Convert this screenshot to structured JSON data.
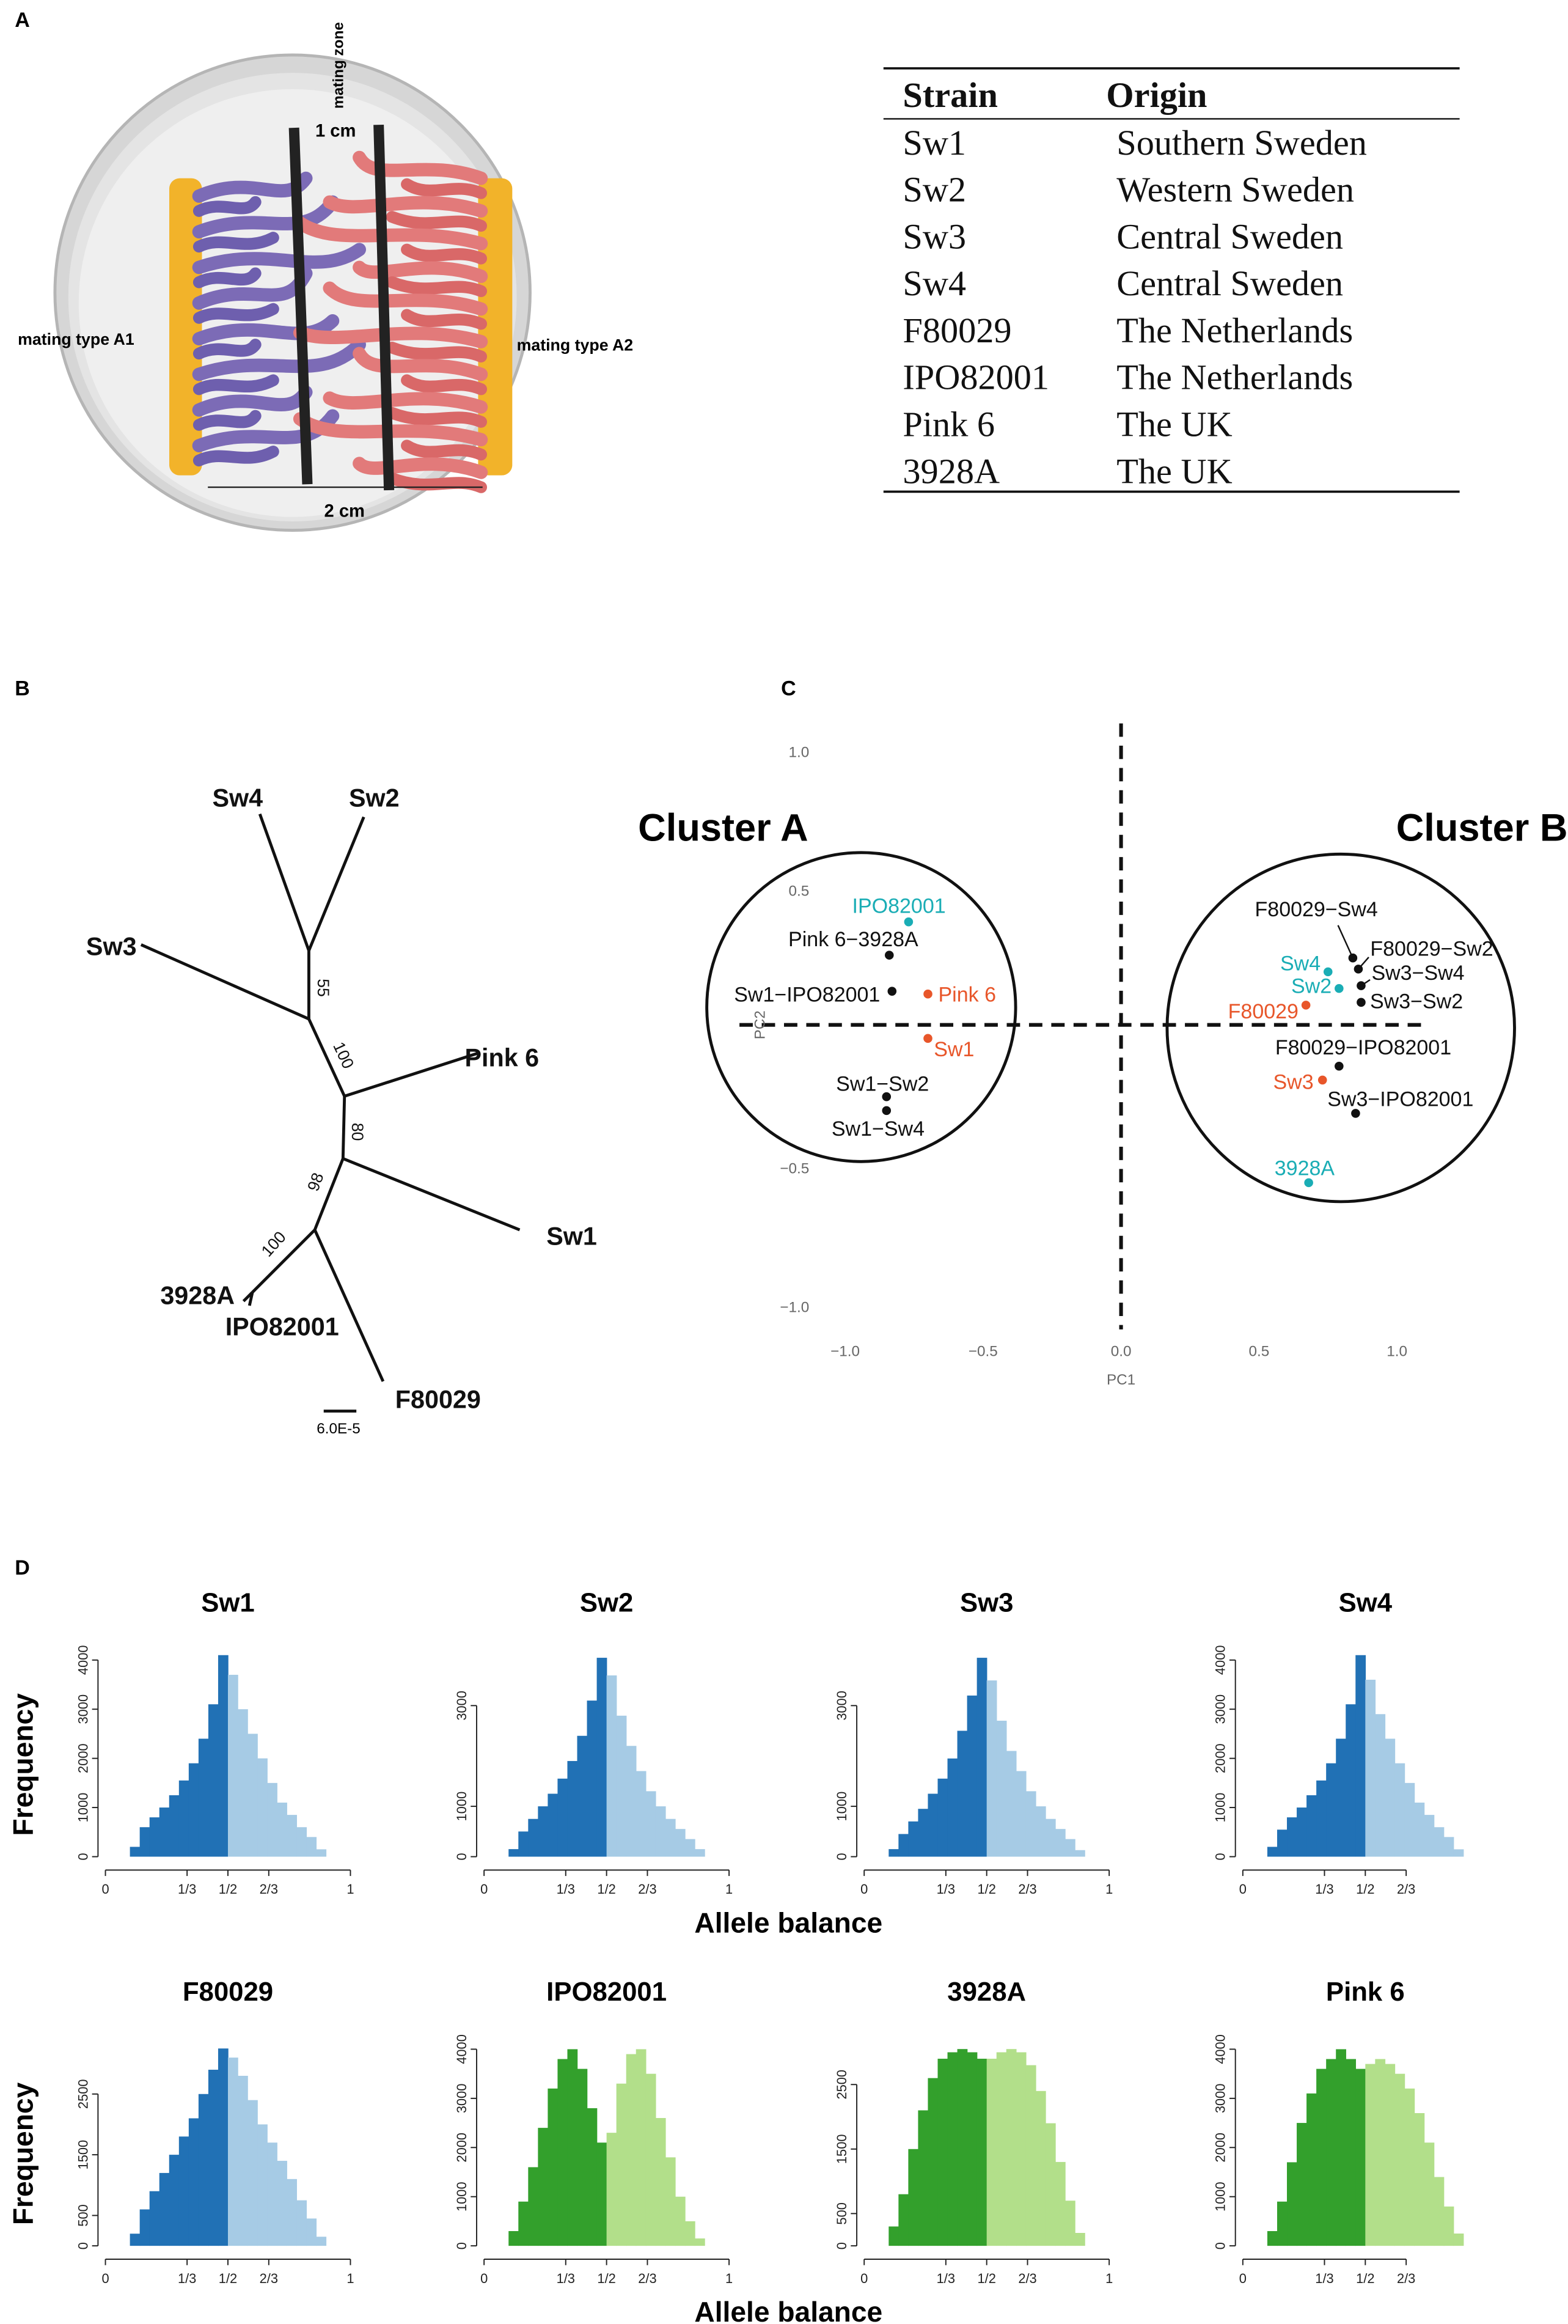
{
  "panel_labels": [
    "A",
    "B",
    "C",
    "D"
  ],
  "diagram": {
    "zone_label": "mating zone",
    "zone_width": "1 cm",
    "left_label": "mating type A1",
    "right_label": "mating type A2",
    "dish_width": "2 cm"
  },
  "table": {
    "header": [
      "Strain",
      "Origin"
    ],
    "rows": [
      [
        "Sw1",
        "Southern Sweden"
      ],
      [
        "Sw2",
        "Western Sweden"
      ],
      [
        "Sw3",
        "Central Sweden"
      ],
      [
        "Sw4",
        "Central Sweden"
      ],
      [
        "F80029",
        "The Netherlands"
      ],
      [
        "IPO82001",
        "The Netherlands"
      ],
      [
        "Pink 6",
        "The UK"
      ],
      [
        "3928A",
        "The UK"
      ]
    ]
  },
  "tree": {
    "tips": [
      "Sw4",
      "Sw2",
      "Sw3",
      "Pink 6",
      "Sw1",
      "3928A",
      "IPO82001",
      "F80029"
    ],
    "support": [
      55,
      100,
      80,
      98,
      100
    ],
    "scale": "6.0E-5"
  },
  "chart_data": [
    {
      "type": "scatter",
      "cluster_labels": [
        "Cluster A",
        "Cluster B"
      ],
      "xlabel": "PC1",
      "ylabel": "PC2",
      "labels": [
        "IPO82001",
        "Pink 6−3928A",
        "Sw1−IPO82001",
        "Pink 6",
        "Sw1",
        "Sw1−Sw2",
        "Sw1−Sw4",
        "F80029−Sw4",
        "F80029−Sw2",
        "Sw4",
        "Sw3−Sw4",
        "Sw2",
        "Sw3−Sw2",
        "F80029",
        "F80029−IPO82001",
        "Sw3",
        "Sw3−IPO82001",
        "3928A"
      ],
      "x": [
        -0.77,
        -0.84,
        -0.83,
        -0.7,
        -0.7,
        -0.85,
        -0.85,
        0.84,
        0.86,
        0.75,
        0.87,
        0.79,
        0.87,
        0.67,
        0.79,
        0.73,
        0.85,
        0.68
      ],
      "values": [
        0.39,
        0.27,
        0.14,
        0.13,
        -0.03,
        -0.24,
        -0.29,
        0.26,
        0.22,
        0.21,
        0.16,
        0.15,
        0.1,
        0.09,
        -0.13,
        -0.18,
        -0.3,
        -0.55
      ],
      "colors": [
        "#1aadb5",
        "#111111",
        "#111111",
        "#e8562a",
        "#e8562a",
        "#111111",
        "#111111",
        "#111111",
        "#111111",
        "#1aadb5",
        "#111111",
        "#1aadb5",
        "#111111",
        "#e8562a",
        "#111111",
        "#e8562a",
        "#111111",
        "#1aadb5"
      ],
      "xlim": [
        -1.2,
        1.2
      ],
      "ylim": [
        -1.1,
        1.1
      ],
      "xticks": [
        {
          "value": -1,
          "label": "−1.0"
        },
        {
          "value": -0.5,
          "label": "−0.5"
        },
        {
          "value": 0,
          "label": "0.0"
        },
        0.5,
        {
          "value": 1,
          "label": "1.0"
        }
      ],
      "yticks": [
        {
          "value": 1,
          "label": "1.0"
        },
        0.5,
        {
          "value": -0.5,
          "label": "−0.5"
        },
        {
          "value": -1,
          "label": "−1.0"
        }
      ]
    },
    {
      "type": "histogram",
      "title": "Sw1",
      "ylabel": "Frequency",
      "bins": [
        0.1,
        0.14,
        0.18,
        0.22,
        0.26,
        0.3,
        0.34,
        0.38,
        0.42,
        0.46,
        0.5,
        0.54,
        0.58,
        0.62,
        0.66,
        0.7,
        0.74,
        0.78,
        0.82,
        0.86,
        0.9
      ],
      "values": [
        200,
        600,
        800,
        1000,
        1250,
        1550,
        1900,
        2400,
        3100,
        4100,
        3700,
        3000,
        2500,
        2000,
        1500,
        1100,
        850,
        600,
        400,
        150
      ],
      "colors": [
        "#2171b5",
        "#a6cbe5"
      ],
      "split": 0.5,
      "xlim": [
        0,
        1
      ],
      "xticks": [
        0,
        {
          "value": 0.3333,
          "label": "1/3"
        },
        {
          "value": 0.5,
          "label": "1/2"
        },
        {
          "value": 0.6667,
          "label": "2/3"
        },
        1
      ],
      "ylim": [
        0,
        4200
      ],
      "yticks": [
        0,
        1000,
        2000,
        3000,
        4000
      ]
    },
    {
      "type": "histogram",
      "title": "Sw2",
      "xlabel": "Allele balance",
      "bins": [
        0.1,
        0.14,
        0.18,
        0.22,
        0.26,
        0.3,
        0.34,
        0.38,
        0.42,
        0.46,
        0.5,
        0.54,
        0.58,
        0.62,
        0.66,
        0.7,
        0.74,
        0.78,
        0.82,
        0.86,
        0.9
      ],
      "values": [
        150,
        500,
        750,
        1000,
        1250,
        1550,
        1900,
        2400,
        3100,
        3950,
        3600,
        2800,
        2200,
        1700,
        1300,
        1000,
        750,
        550,
        350,
        150
      ],
      "colors": [
        "#2171b5",
        "#a6cbe5"
      ],
      "split": 0.5,
      "xlim": [
        0,
        1
      ],
      "xticks": [
        0,
        {
          "value": 0.3333,
          "label": "1/3"
        },
        {
          "value": 0.5,
          "label": "1/2"
        },
        {
          "value": 0.6667,
          "label": "2/3"
        },
        1
      ],
      "ylim": [
        0,
        4100
      ],
      "yticks": [
        0,
        1000,
        3000
      ]
    },
    {
      "type": "histogram",
      "title": "Sw3",
      "bins": [
        0.1,
        0.14,
        0.18,
        0.22,
        0.26,
        0.3,
        0.34,
        0.38,
        0.42,
        0.46,
        0.5,
        0.54,
        0.58,
        0.62,
        0.66,
        0.7,
        0.74,
        0.78,
        0.82,
        0.86,
        0.9
      ],
      "values": [
        150,
        450,
        700,
        950,
        1250,
        1550,
        1950,
        2500,
        3200,
        3950,
        3500,
        2700,
        2100,
        1700,
        1300,
        1000,
        750,
        550,
        350,
        130
      ],
      "colors": [
        "#2171b5",
        "#a6cbe5"
      ],
      "split": 0.5,
      "xlim": [
        0,
        1
      ],
      "xticks": [
        0,
        {
          "value": 0.3333,
          "label": "1/3"
        },
        {
          "value": 0.5,
          "label": "1/2"
        },
        {
          "value": 0.6667,
          "label": "2/3"
        },
        1
      ],
      "ylim": [
        0,
        4100
      ],
      "yticks": [
        0,
        1000,
        3000
      ]
    },
    {
      "type": "histogram",
      "title": "Sw4",
      "bins": [
        0.1,
        0.14,
        0.18,
        0.22,
        0.26,
        0.3,
        0.34,
        0.38,
        0.42,
        0.46,
        0.5,
        0.54,
        0.58,
        0.62,
        0.66,
        0.7,
        0.74,
        0.78,
        0.82,
        0.86,
        0.9
      ],
      "values": [
        200,
        550,
        800,
        1000,
        1250,
        1550,
        1900,
        2400,
        3100,
        4100,
        3600,
        2900,
        2400,
        1900,
        1500,
        1100,
        850,
        600,
        400,
        150
      ],
      "colors": [
        "#2171b5",
        "#a6cbe5"
      ],
      "split": 0.5,
      "xlim": [
        0,
        1
      ],
      "xticks": [
        0,
        {
          "value": 0.3333,
          "label": "1/3"
        },
        {
          "value": 0.5,
          "label": "1/2"
        },
        {
          "value": 0.6667,
          "label": "2/3"
        }
      ],
      "ylim": [
        0,
        4200
      ],
      "yticks": [
        0,
        1000,
        2000,
        3000,
        4000
      ]
    },
    {
      "type": "histogram",
      "title": "F80029",
      "ylabel": "Frequency",
      "bins": [
        0.1,
        0.14,
        0.18,
        0.22,
        0.26,
        0.3,
        0.34,
        0.38,
        0.42,
        0.46,
        0.5,
        0.54,
        0.58,
        0.62,
        0.66,
        0.7,
        0.74,
        0.78,
        0.82,
        0.86,
        0.9
      ],
      "values": [
        200,
        600,
        900,
        1200,
        1500,
        1800,
        2100,
        2500,
        2900,
        3250,
        3100,
        2800,
        2400,
        2000,
        1700,
        1400,
        1100,
        750,
        450,
        150
      ],
      "colors": [
        "#2171b5",
        "#a6cbe5"
      ],
      "split": 0.5,
      "xlim": [
        0,
        1
      ],
      "xticks": [
        0,
        {
          "value": 0.3333,
          "label": "1/3"
        },
        {
          "value": 0.5,
          "label": "1/2"
        },
        {
          "value": 0.6667,
          "label": "2/3"
        },
        1
      ],
      "ylim": [
        0,
        3400
      ],
      "yticks": [
        0,
        500,
        1500,
        2500
      ]
    },
    {
      "type": "histogram",
      "title": "IPO82001",
      "xlabel": "Allele balance",
      "bins": [
        0.1,
        0.14,
        0.18,
        0.22,
        0.26,
        0.3,
        0.34,
        0.38,
        0.42,
        0.46,
        0.5,
        0.54,
        0.58,
        0.62,
        0.66,
        0.7,
        0.74,
        0.78,
        0.82,
        0.86,
        0.9
      ],
      "values": [
        300,
        900,
        1600,
        2400,
        3200,
        3800,
        4000,
        3600,
        2800,
        2100,
        2300,
        3300,
        3900,
        4000,
        3500,
        2600,
        1800,
        1000,
        500,
        150
      ],
      "colors": [
        "#33a02c",
        "#b2df8a"
      ],
      "split": 0.5,
      "xlim": [
        0,
        1
      ],
      "xticks": [
        0,
        {
          "value": 0.3333,
          "label": "1/3"
        },
        {
          "value": 0.5,
          "label": "1/2"
        },
        {
          "value": 0.6667,
          "label": "2/3"
        },
        1
      ],
      "ylim": [
        0,
        4200
      ],
      "yticks": [
        0,
        1000,
        2000,
        3000,
        4000
      ]
    },
    {
      "type": "histogram",
      "title": "3928A",
      "bins": [
        0.1,
        0.14,
        0.18,
        0.22,
        0.26,
        0.3,
        0.34,
        0.38,
        0.42,
        0.46,
        0.5,
        0.54,
        0.58,
        0.62,
        0.66,
        0.7,
        0.74,
        0.78,
        0.82,
        0.86,
        0.9
      ],
      "values": [
        300,
        800,
        1500,
        2100,
        2600,
        2900,
        3000,
        3050,
        3000,
        2900,
        2900,
        3000,
        3050,
        3000,
        2800,
        2400,
        1900,
        1300,
        700,
        200
      ],
      "colors": [
        "#33a02c",
        "#b2df8a"
      ],
      "split": 0.5,
      "xlim": [
        0,
        1
      ],
      "xticks": [
        0,
        {
          "value": 0.3333,
          "label": "1/3"
        },
        {
          "value": 0.5,
          "label": "1/2"
        },
        {
          "value": 0.6667,
          "label": "2/3"
        },
        1
      ],
      "ylim": [
        0,
        3200
      ],
      "yticks": [
        0,
        500,
        1500,
        2500
      ]
    },
    {
      "type": "histogram",
      "title": "Pink 6",
      "bins": [
        0.1,
        0.14,
        0.18,
        0.22,
        0.26,
        0.3,
        0.34,
        0.38,
        0.42,
        0.46,
        0.5,
        0.54,
        0.58,
        0.62,
        0.66,
        0.7,
        0.74,
        0.78,
        0.82,
        0.86,
        0.9
      ],
      "values": [
        300,
        900,
        1700,
        2500,
        3100,
        3600,
        3800,
        4000,
        3800,
        3600,
        3700,
        3800,
        3700,
        3500,
        3200,
        2700,
        2100,
        1400,
        800,
        250
      ],
      "colors": [
        "#33a02c",
        "#b2df8a"
      ],
      "split": 0.5,
      "xlim": [
        0,
        1
      ],
      "xticks": [
        0,
        {
          "value": 0.3333,
          "label": "1/3"
        },
        {
          "value": 0.5,
          "label": "1/2"
        },
        {
          "value": 0.6667,
          "label": "2/3"
        }
      ],
      "ylim": [
        0,
        4200
      ],
      "yticks": [
        0,
        1000,
        2000,
        3000,
        4000
      ]
    }
  ]
}
